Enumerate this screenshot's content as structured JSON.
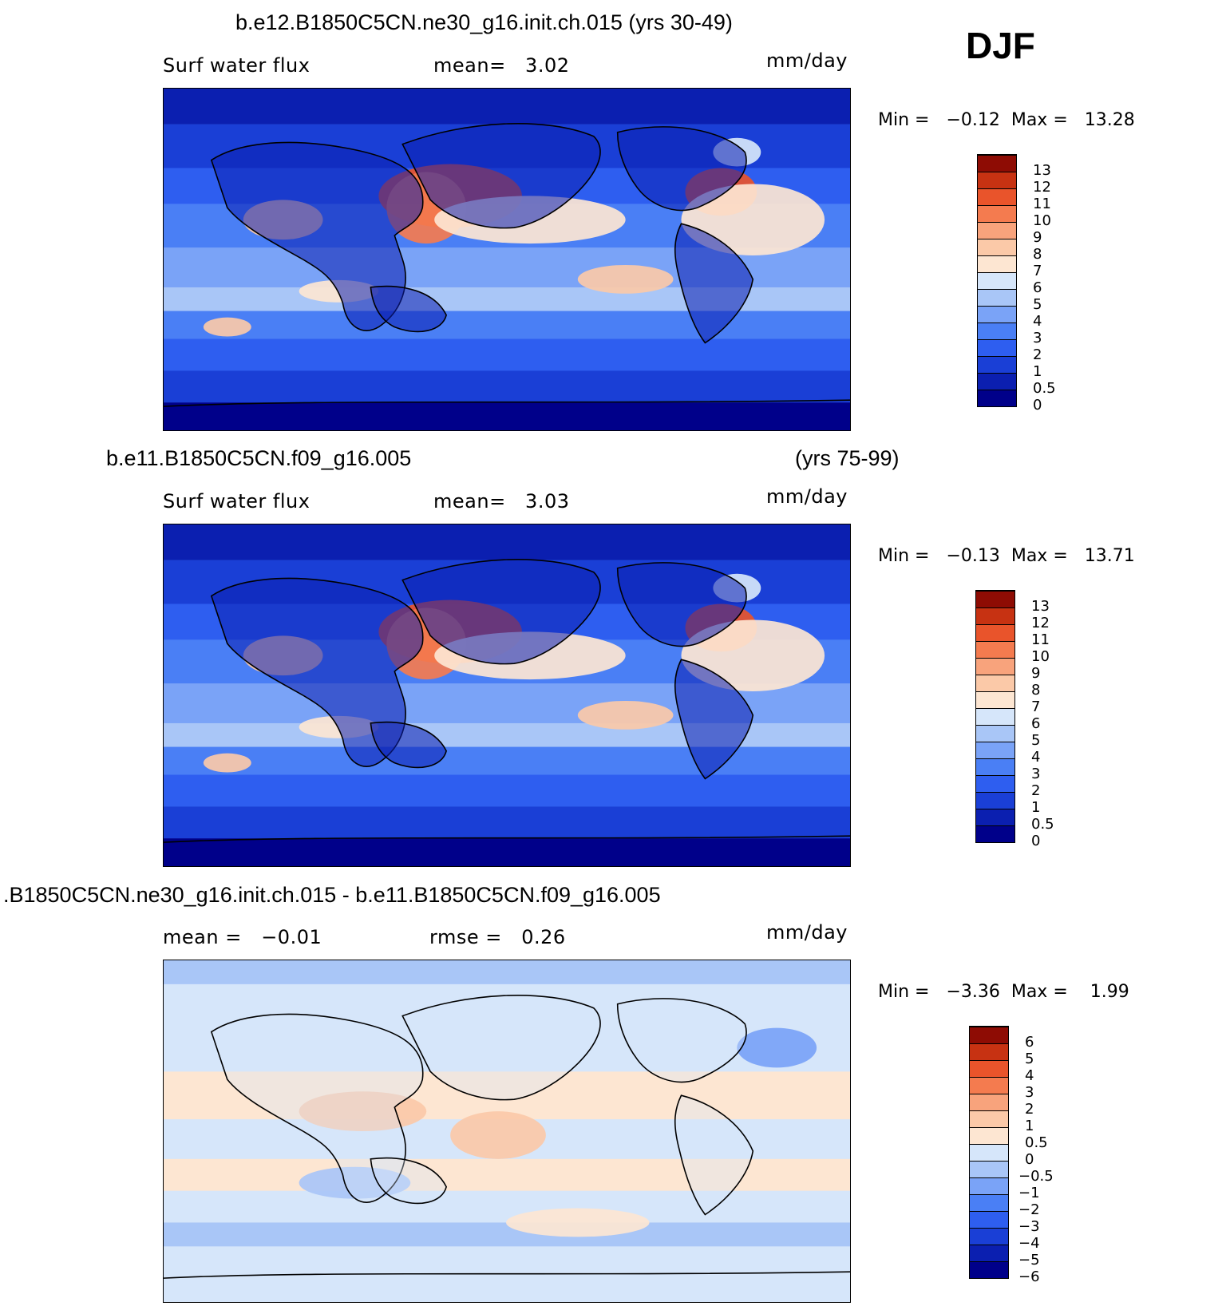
{
  "season": "DJF",
  "panels": [
    {
      "title": "b.e12.B1850C5CN.ne30_g16.init.ch.015 (yrs 30-49)",
      "title_right": "",
      "left_label": "Surf water flux",
      "mid_label": "mean=   3.02",
      "units": "mm/day",
      "minmax": "Min =   −0.12  Max =   13.28",
      "colorbar_labels": [
        "13",
        "12",
        "11",
        "10",
        "9",
        "8",
        "7",
        "6",
        "5",
        "4",
        "3",
        "2",
        "1",
        "0.5",
        "0"
      ]
    },
    {
      "title": "b.e11.B1850C5CN.f09_g16.005",
      "title_right": "(yrs 75-99)",
      "left_label": "Surf water flux",
      "mid_label": "mean=   3.03",
      "units": "mm/day",
      "minmax": "Min =   −0.13  Max =   13.71",
      "colorbar_labels": [
        "13",
        "12",
        "11",
        "10",
        "9",
        "8",
        "7",
        "6",
        "5",
        "4",
        "3",
        "2",
        "1",
        "0.5",
        "0"
      ]
    },
    {
      "title": ".B1850C5CN.ne30_g16.init.ch.015 - b.e11.B1850C5CN.f09_g16.005",
      "title_right": "",
      "left_label": "mean =   −0.01",
      "mid_label": "rmse =   0.26",
      "units": "mm/day",
      "minmax": "Min =   −3.36  Max =    1.99",
      "colorbar_labels": [
        "6",
        "5",
        "4",
        "3",
        "2",
        "1",
        "0.5",
        "0",
        "−0.5",
        "−1",
        "−2",
        "−3",
        "−4",
        "−5",
        "−6"
      ]
    }
  ],
  "chart_data": [
    {
      "type": "heatmap",
      "title": "b.e12.B1850C5CN.ne30_g16.init.ch.015 (yrs 30-49)",
      "variable": "Surf water flux",
      "units": "mm/day",
      "mean": 3.02,
      "min": -0.12,
      "max": 13.28,
      "levels": [
        0,
        0.5,
        1,
        2,
        3,
        4,
        5,
        6,
        7,
        8,
        9,
        10,
        11,
        12,
        13
      ],
      "colors": [
        "#00008a",
        "#0b1fb0",
        "#1a3fd6",
        "#2e5ef0",
        "#4a7ff5",
        "#7aa3f7",
        "#a9c6f7",
        "#d6e6fa",
        "#fde6d2",
        "#fbc9a8",
        "#f8a37c",
        "#f47b4f",
        "#e9542b",
        "#c73212",
        "#8e0c04"
      ]
    },
    {
      "type": "heatmap",
      "title": "b.e11.B1850C5CN.f09_g16.005 (yrs 75-99)",
      "variable": "Surf water flux",
      "units": "mm/day",
      "mean": 3.03,
      "min": -0.13,
      "max": 13.71,
      "levels": [
        0,
        0.5,
        1,
        2,
        3,
        4,
        5,
        6,
        7,
        8,
        9,
        10,
        11,
        12,
        13
      ],
      "colors": [
        "#00008a",
        "#0b1fb0",
        "#1a3fd6",
        "#2e5ef0",
        "#4a7ff5",
        "#7aa3f7",
        "#a9c6f7",
        "#d6e6fa",
        "#fde6d2",
        "#fbc9a8",
        "#f8a37c",
        "#f47b4f",
        "#e9542b",
        "#c73212",
        "#8e0c04"
      ]
    },
    {
      "type": "heatmap",
      "title": ".B1850C5CN.ne30_g16.init.ch.015 - b.e11.B1850C5CN.f09_g16.005",
      "units": "mm/day",
      "mean": -0.01,
      "rmse": 0.26,
      "min": -3.36,
      "max": 1.99,
      "levels": [
        -6,
        -5,
        -4,
        -3,
        -2,
        -1,
        -0.5,
        0,
        0.5,
        1,
        2,
        3,
        4,
        5,
        6
      ],
      "colors": [
        "#00008a",
        "#0b1fb0",
        "#1a3fd6",
        "#2e5ef0",
        "#4a7ff5",
        "#7aa3f7",
        "#a9c6f7",
        "#d6e6fa",
        "#fde6d2",
        "#fbc9a8",
        "#f8a37c",
        "#f47b4f",
        "#e9542b",
        "#c73212",
        "#8e0c04"
      ]
    }
  ]
}
